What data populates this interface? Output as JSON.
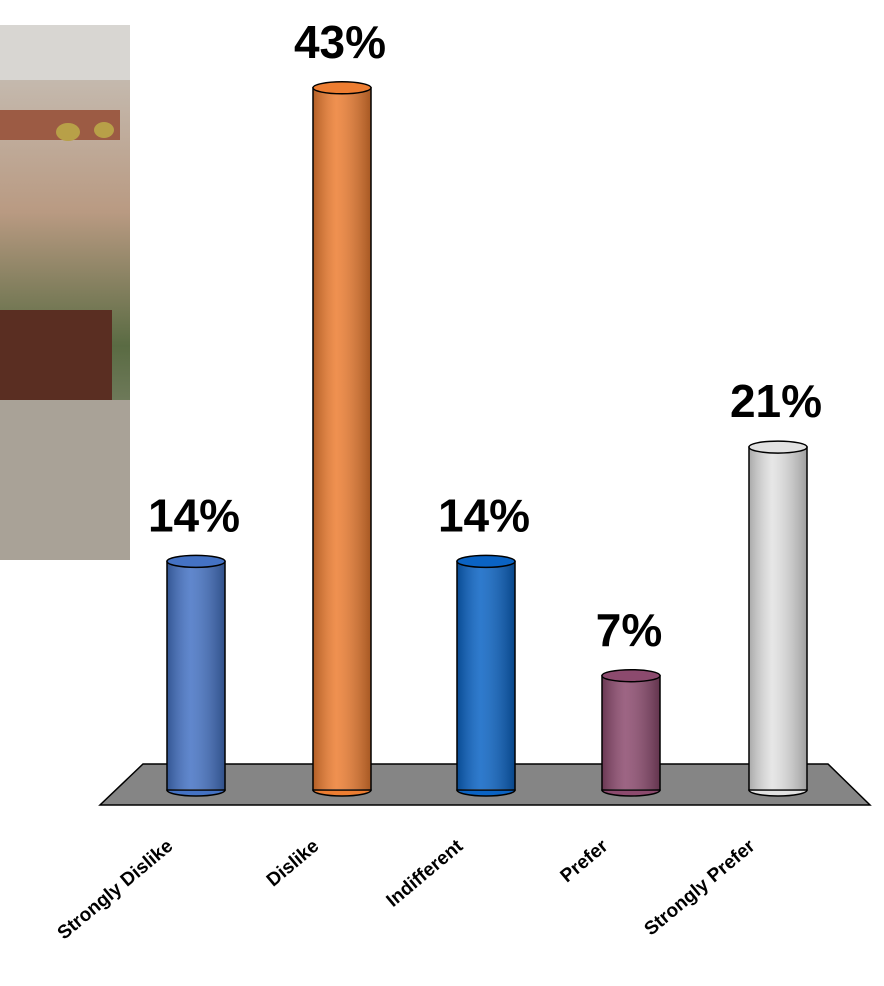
{
  "chart_data": {
    "type": "bar",
    "categories": [
      "Strongly Dislike",
      "Dislike",
      "Indifferent",
      "Prefer",
      "Strongly Prefer"
    ],
    "values": [
      14,
      43,
      14,
      7,
      21
    ],
    "value_labels": [
      "14%",
      "43%",
      "14%",
      "7%",
      "21%"
    ],
    "colors": [
      "#4472c4",
      "#ed7d31",
      "#0a63c4",
      "#8c4a6e",
      "#e2e2e2"
    ]
  }
}
